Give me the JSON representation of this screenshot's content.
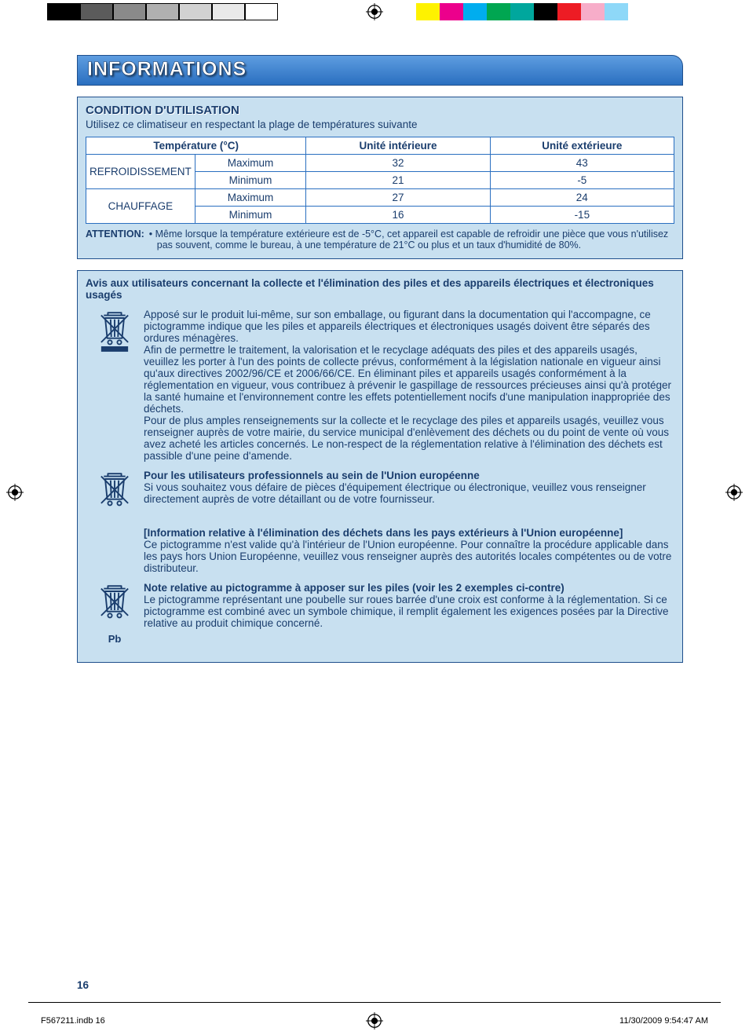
{
  "printbar": {
    "left_colors": [
      "#000000",
      "#5b5b5b",
      "#8a8a8a",
      "#b0b0b0",
      "#d2d2d2",
      "#e9e9e9",
      "#ffffff"
    ],
    "right_colors": [
      "#fef200",
      "#ec008c",
      "#00adef",
      "#00a651",
      "#00a79d",
      "#000000",
      "#ed1c24",
      "#f7adc9",
      "#8ed8f8",
      "#ffffff"
    ]
  },
  "banner": {
    "title": "INFORMATIONS"
  },
  "section1": {
    "heading": "CONDITION D'UTILISATION",
    "intro": "Utilisez ce climatiseur en respectant la plage de températures suivante",
    "table": {
      "columns": [
        "Température (°C)",
        "Unité intérieure",
        "Unité extérieure"
      ],
      "col_widths_pct": [
        18,
        19,
        31.5,
        31.5
      ],
      "rows": [
        {
          "mode": "REFROIDISSEMENT",
          "max_label": "Maximum",
          "max": [
            "32",
            "43"
          ],
          "min_label": "Minimum",
          "min": [
            "21",
            "-5"
          ]
        },
        {
          "mode": "CHAUFFAGE",
          "max_label": "Maximum",
          "max": [
            "27",
            "24"
          ],
          "min_label": "Minimum",
          "min": [
            "16",
            "-15"
          ]
        }
      ],
      "border_color": "#2a6fc0",
      "text_color": "#1a3d6d"
    },
    "attention_label": "ATTENTION:",
    "attention_body": "•   Même lorsque la température extérieure est de -5°C, cet appareil est capable de refroidir une pièce que vous n'utilisez pas souvent, comme le bureau, à une température de 21°C ou plus et un taux d'humidité de 80%."
  },
  "section2": {
    "heading": "Avis aux utilisateurs concernant la collecte et l'élimination des piles et des appareils électriques et électroniques usagés",
    "items": [
      {
        "icon": "waste-bin-with-bar",
        "paragraphs": [
          "Apposé sur le produit lui-même, sur son emballage, ou figurant dans la documentation qui l'accompagne, ce pictogramme indique que les piles et appareils électriques et électroniques usagés doivent être séparés des ordures ménagères.",
          "Afin de permettre le traitement, la valorisation et le recyclage adéquats des piles et des appareils usagés, veuillez les porter à l'un des points de collecte prévus, conformément à la législation nationale en vigueur ainsi qu'aux directives 2002/96/CE et 2006/66/CE.  En éliminant piles et appareils usagés conformément à la réglementation en vigueur, vous contribuez à prévenir le gaspillage de ressources précieuses ainsi qu'à protéger la santé humaine et l'environnement contre les effets potentiellement nocifs d'une manipulation inappropriée des déchets.",
          "Pour de plus amples renseignements sur la collecte et le recyclage des piles et appareils usagés, veuillez vous renseigner auprès de votre mairie, du service municipal d'enlèvement des déchets ou du point de vente où vous avez acheté les articles concernés. Le non-respect de la réglementation relative à l'élimination des déchets est passible d'une peine d'amende."
        ]
      },
      {
        "icon": "waste-bin",
        "bold": "Pour les utilisateurs professionnels au sein de l'Union européenne",
        "paragraphs": [
          "Si vous souhaitez vous défaire de pièces d'équipement électrique ou électronique, veuillez vous renseigner directement auprès de votre détaillant ou de votre fournisseur."
        ]
      },
      {
        "icon": "none",
        "bold": "[Information relative à l'élimination des déchets dans les pays extérieurs à l'Union européenne]",
        "paragraphs": [
          "Ce pictogramme n'est valide qu'à l'intérieur de l'Union européenne. Pour connaître la procédure applicable dans les pays hors Union Européenne, veuillez vous renseigner auprès des autorités locales compétentes ou de votre distributeur."
        ]
      },
      {
        "icon": "waste-bin-pb",
        "bold": "Note relative au pictogramme à apposer sur les piles (voir les 2 exemples ci-contre)",
        "paragraphs": [
          "Le pictogramme représentant une poubelle sur roues barrée d'une croix est conforme à la réglementation. Si ce pictogramme est combiné avec un symbole chimique, il remplit également les exigences posées par la Directive relative au produit chimique concerné."
        ],
        "pb_label": "Pb"
      }
    ]
  },
  "colors": {
    "banner_grad_top": "#5e9de0",
    "banner_grad_bottom": "#2a6fc0",
    "box_bg": "#c8e0f0",
    "box_border": "#1f4f8c",
    "text": "#1a3d6d"
  },
  "footer": {
    "page_number": "16",
    "left": "F567211.indb   16",
    "right": "11/30/2009   9:54:47 AM"
  }
}
